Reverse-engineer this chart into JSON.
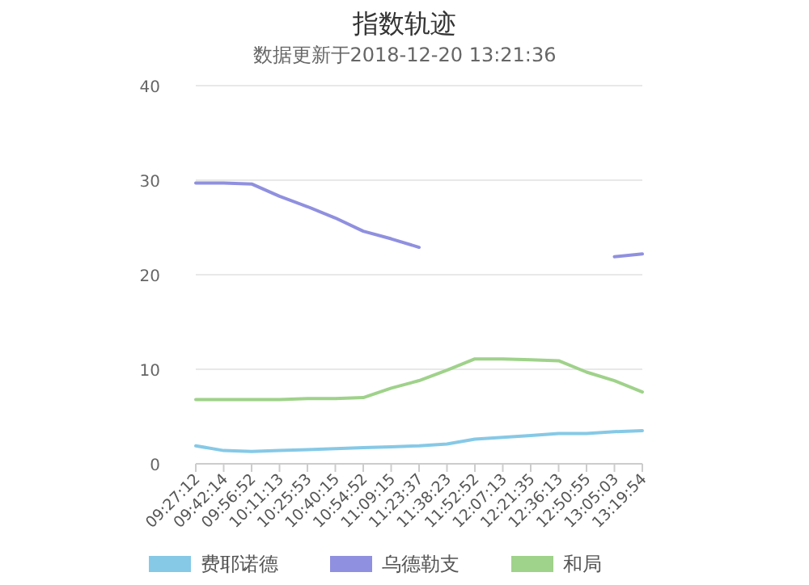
{
  "chart_data": {
    "type": "line",
    "title": "指数轨迹",
    "subtitle": "数据更新于2018-12-20 13:21:36",
    "categories": [
      "09:27:12",
      "09:42:14",
      "09:56:52",
      "10:11:13",
      "10:25:53",
      "10:40:15",
      "10:54:52",
      "11:09:15",
      "11:23:37",
      "11:38:23",
      "11:52:52",
      "12:07:13",
      "12:21:35",
      "12:36:13",
      "12:50:55",
      "13:05:03",
      "13:19:54"
    ],
    "series": [
      {
        "name": "费耶诺德",
        "color": "#86c9e6",
        "values": [
          1.9,
          1.4,
          1.3,
          1.4,
          1.5,
          1.6,
          1.7,
          1.8,
          1.9,
          2.1,
          2.6,
          2.8,
          3.0,
          3.2,
          3.2,
          3.4,
          3.5
        ]
      },
      {
        "name": "乌德勒支",
        "color": "#9090e0",
        "values": [
          29.7,
          29.7,
          29.6,
          28.3,
          27.2,
          26.0,
          24.6,
          23.8,
          22.9,
          null,
          null,
          null,
          null,
          null,
          null,
          21.9,
          22.2
        ]
      },
      {
        "name": "和局",
        "color": "#9fd28a",
        "values": [
          6.8,
          6.8,
          6.8,
          6.8,
          6.9,
          6.9,
          7.0,
          8.0,
          8.8,
          9.9,
          11.1,
          11.1,
          11.0,
          10.9,
          9.7,
          8.8,
          7.6
        ]
      }
    ],
    "ylim": [
      0,
      40
    ],
    "yticks": [
      0,
      10,
      20,
      30,
      40
    ],
    "grid": "y",
    "legend": "bottom",
    "marker": "none",
    "line_style": "solid"
  }
}
